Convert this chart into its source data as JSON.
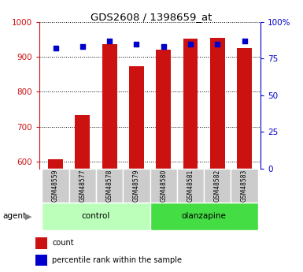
{
  "title": "GDS2608 / 1398659_at",
  "samples": [
    "GSM48559",
    "GSM48577",
    "GSM48578",
    "GSM48579",
    "GSM48580",
    "GSM48581",
    "GSM48582",
    "GSM48583"
  ],
  "counts": [
    607,
    733,
    937,
    873,
    921,
    951,
    953,
    924
  ],
  "percentiles": [
    82,
    83,
    87,
    85,
    83,
    85,
    85,
    87
  ],
  "groups": [
    "control",
    "control",
    "control",
    "control",
    "olanzapine",
    "olanzapine",
    "olanzapine",
    "olanzapine"
  ],
  "bar_color": "#cc1111",
  "scatter_color": "#0000cc",
  "ylim_left": [
    580,
    1000
  ],
  "ylim_right": [
    0,
    100
  ],
  "yticks_left": [
    600,
    700,
    800,
    900,
    1000
  ],
  "yticks_right": [
    0,
    25,
    50,
    75,
    100
  ],
  "grid_color": "#000000",
  "control_color": "#bbffbb",
  "olanzapine_color": "#44dd44",
  "tick_area_color": "#cccccc",
  "bar_width": 0.55,
  "legend_count_label": "count",
  "legend_pct_label": "percentile rank within the sample"
}
